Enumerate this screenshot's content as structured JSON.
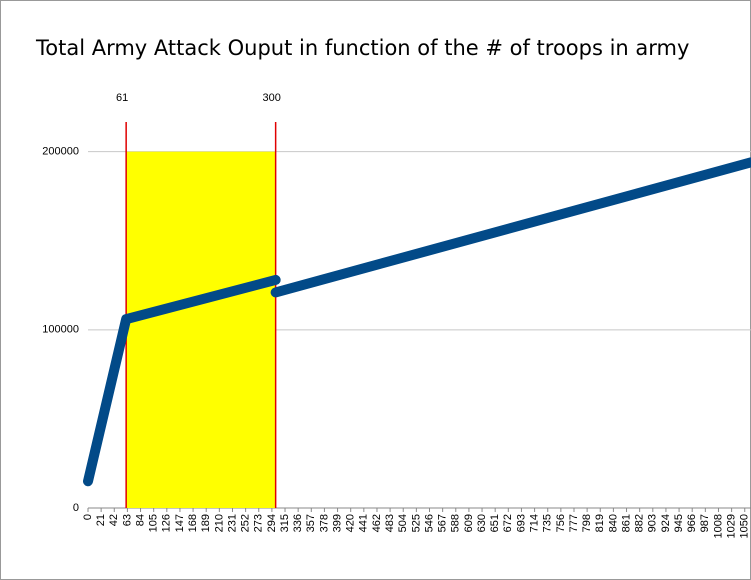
{
  "chart_data": {
    "type": "line",
    "title": "Total Army Attack Ouput in function of the # of troops in army",
    "x": [
      0,
      61,
      300,
      300,
      300,
      1060
    ],
    "series": [
      {
        "color": "#024a88",
        "values": [
          15000,
          106000,
          128000,
          null,
          121000,
          194000
        ]
      }
    ],
    "xlim": [
      0,
      1060
    ],
    "xticks": [
      0,
      21,
      42,
      63,
      84,
      105,
      126,
      147,
      168,
      189,
      210,
      231,
      252,
      273,
      294,
      315,
      336,
      357,
      378,
      399,
      420,
      441,
      462,
      483,
      504,
      525,
      546,
      567,
      588,
      609,
      630,
      651,
      672,
      693,
      714,
      735,
      756,
      777,
      798,
      819,
      840,
      861,
      882,
      903,
      924,
      945,
      966,
      987,
      1008,
      1029,
      1050
    ],
    "ylim": [
      0,
      229000
    ],
    "yticks": [
      0,
      100000,
      200000
    ],
    "grid": true,
    "highlight": {
      "x": [
        61,
        300
      ],
      "y": [
        0,
        200000
      ],
      "color": "#ffff00"
    },
    "annotations": [
      {
        "x": 61,
        "color": "#e00000"
      },
      {
        "x": 300,
        "color": "#e00000"
      }
    ]
  }
}
